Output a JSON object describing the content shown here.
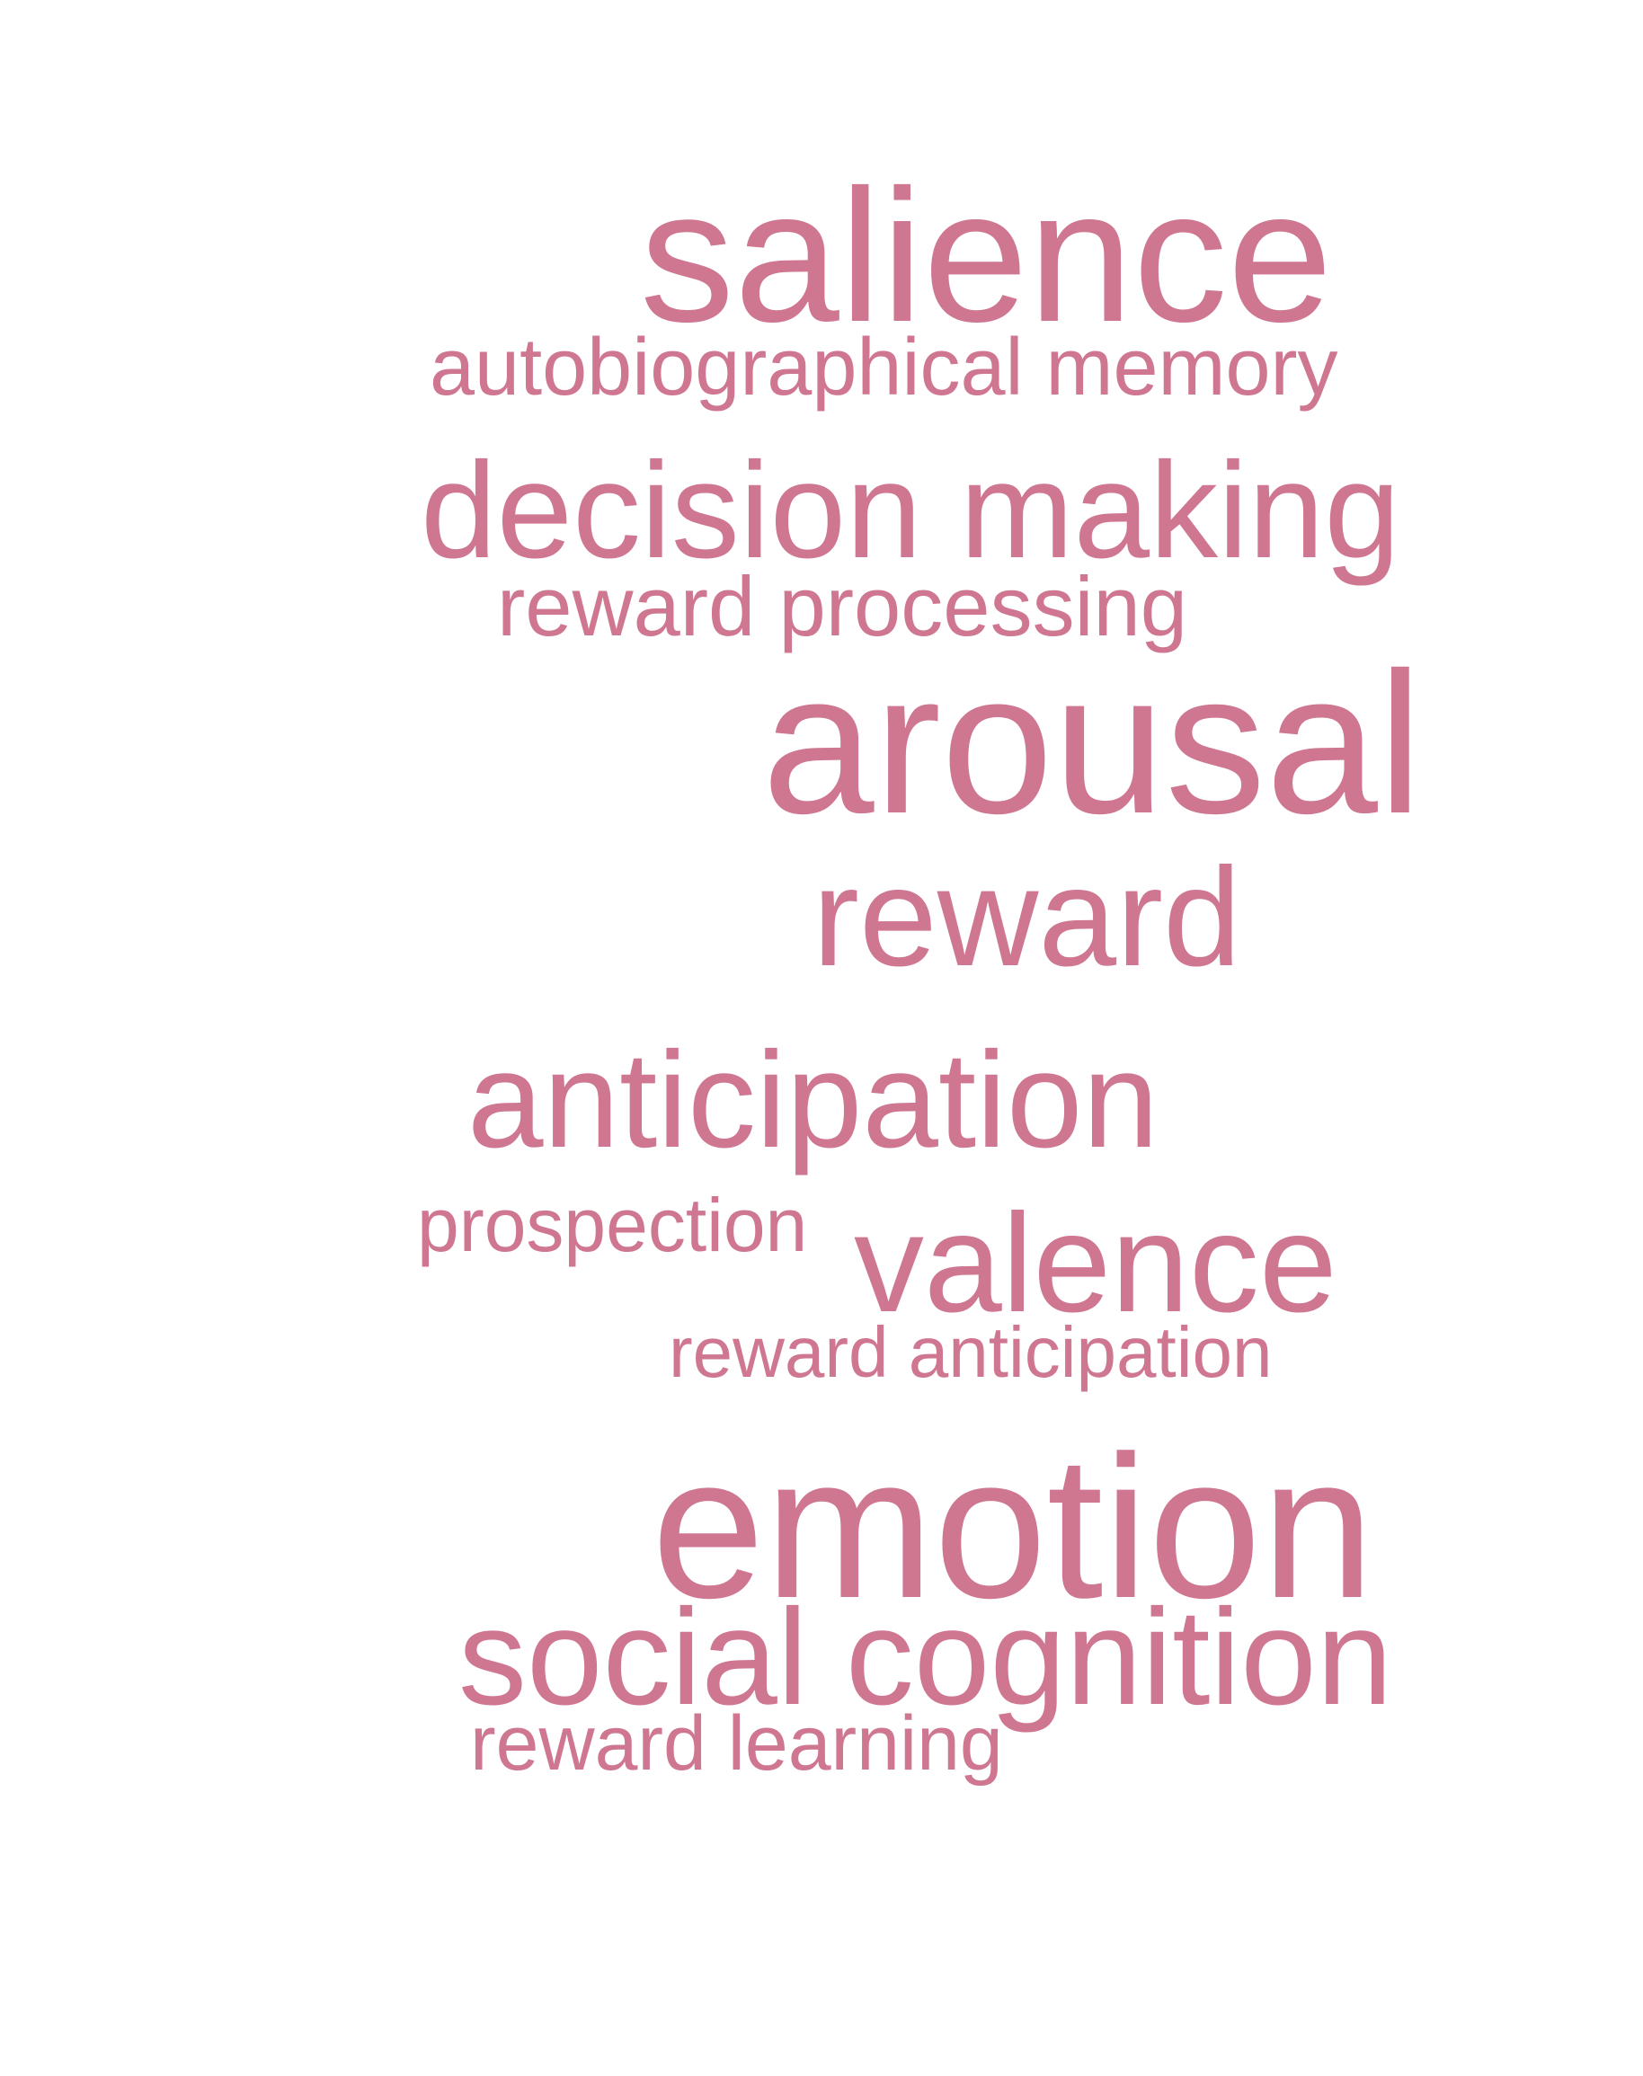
{
  "colors": {
    "background": "#ffffff",
    "word": "#cf7691"
  },
  "word_cloud": {
    "terms": [
      "salience",
      "autobiographical memory",
      "decision making",
      "reward processing",
      "arousal",
      "reward",
      "anticipation",
      "prospection",
      "valence",
      "reward anticipation",
      "emotion",
      "social cognition",
      "reward learning"
    ]
  }
}
